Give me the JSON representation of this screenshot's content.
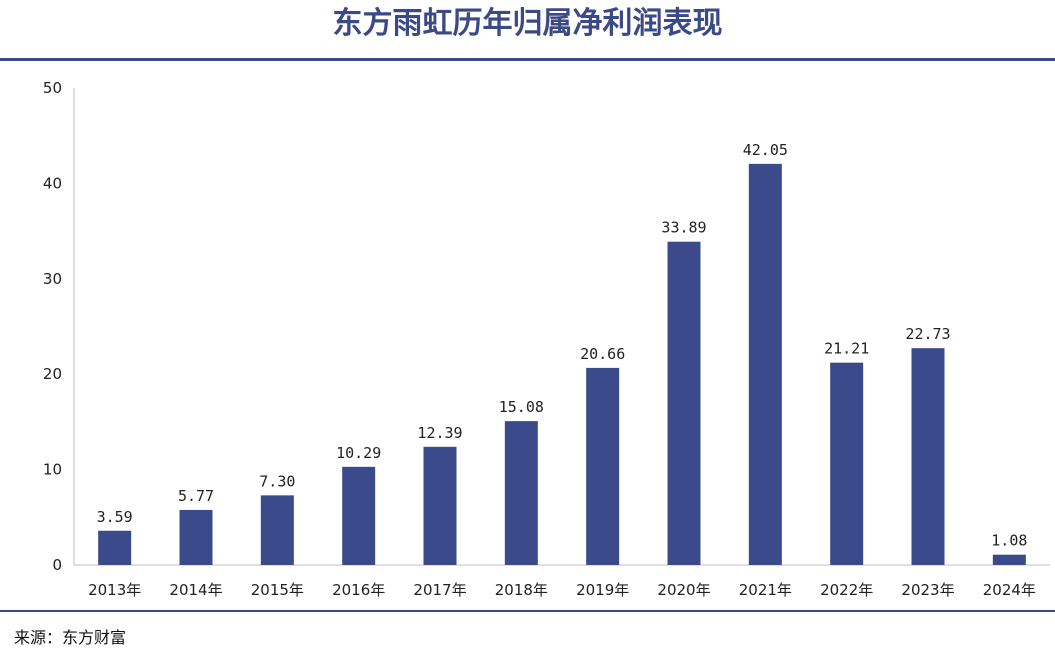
{
  "title": "东方雨虹历年归属净利润表现",
  "source": "来源：东方财富",
  "colors": {
    "bar": "#3b4a8a",
    "rule": "#3b4a86",
    "axis": "#bfbfbf"
  },
  "chart_data": {
    "type": "bar",
    "title": "东方雨虹历年归属净利润表现",
    "categories": [
      "2013年",
      "2014年",
      "2015年",
      "2016年",
      "2017年",
      "2018年",
      "2019年",
      "2020年",
      "2021年",
      "2022年",
      "2023年",
      "2024年"
    ],
    "values": [
      3.59,
      5.77,
      7.3,
      10.29,
      12.39,
      15.08,
      20.66,
      33.89,
      42.05,
      21.21,
      22.73,
      1.08
    ],
    "data_labels": [
      "3.59",
      "5.77",
      "7.30",
      "10.29",
      "12.39",
      "15.08",
      "20.66",
      "33.89",
      "42.05",
      "21.21",
      "22.73",
      "1.08"
    ],
    "yticks": [
      "0",
      "10",
      "20",
      "30",
      "40",
      "50"
    ],
    "ylim": [
      0,
      50
    ],
    "xlabel": "",
    "ylabel": "",
    "grid": false,
    "legend": "none"
  }
}
